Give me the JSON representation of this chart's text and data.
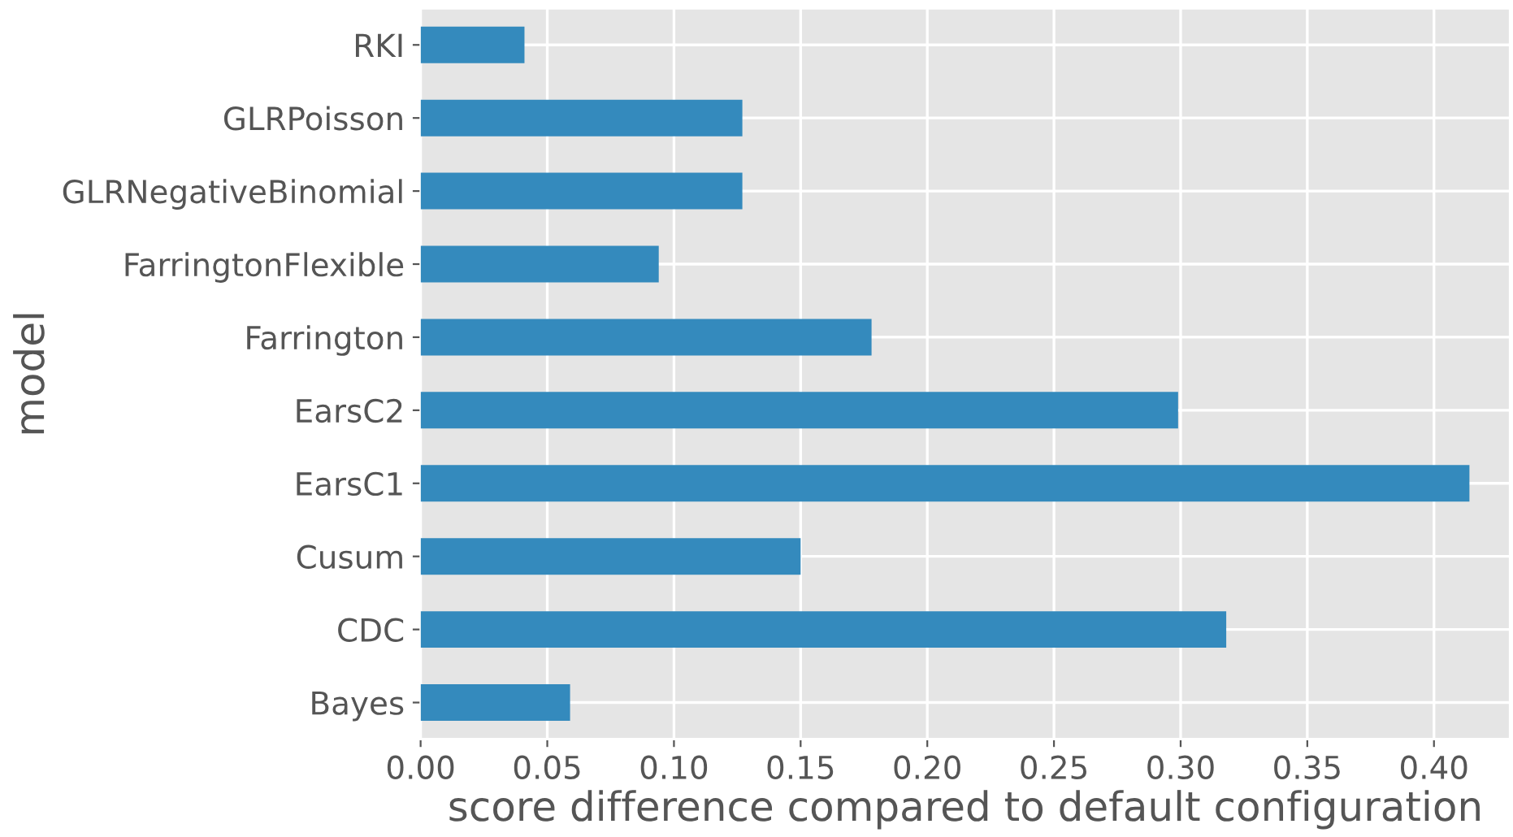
{
  "chart_data": {
    "type": "bar",
    "orientation": "horizontal",
    "xlabel": "score difference compared to default configuration",
    "ylabel": "model",
    "categories": [
      "RKI",
      "GLRPoisson",
      "GLRNegativeBinomial",
      "FarringtonFlexible",
      "Farrington",
      "EarsC2",
      "EarsC1",
      "Cusum",
      "CDC",
      "Bayes"
    ],
    "values": [
      0.041,
      0.127,
      0.127,
      0.094,
      0.178,
      0.299,
      0.414,
      0.15,
      0.318,
      0.059
    ],
    "color": "#348abd",
    "xlim": [
      0,
      0.43
    ],
    "xticks": [
      {
        "value": 0,
        "label": "0.00"
      },
      {
        "value": 0.05,
        "label": "0.05"
      },
      {
        "value": 0.1,
        "label": "0.10"
      },
      {
        "value": 0.15,
        "label": "0.15"
      },
      {
        "value": 0.2,
        "label": "0.20"
      },
      {
        "value": 0.25,
        "label": "0.25"
      },
      {
        "value": 0.3,
        "label": "0.30"
      },
      {
        "value": 0.35,
        "label": "0.35"
      },
      {
        "value": 0.4,
        "label": "0.40"
      }
    ],
    "grid": true,
    "legend": false
  }
}
